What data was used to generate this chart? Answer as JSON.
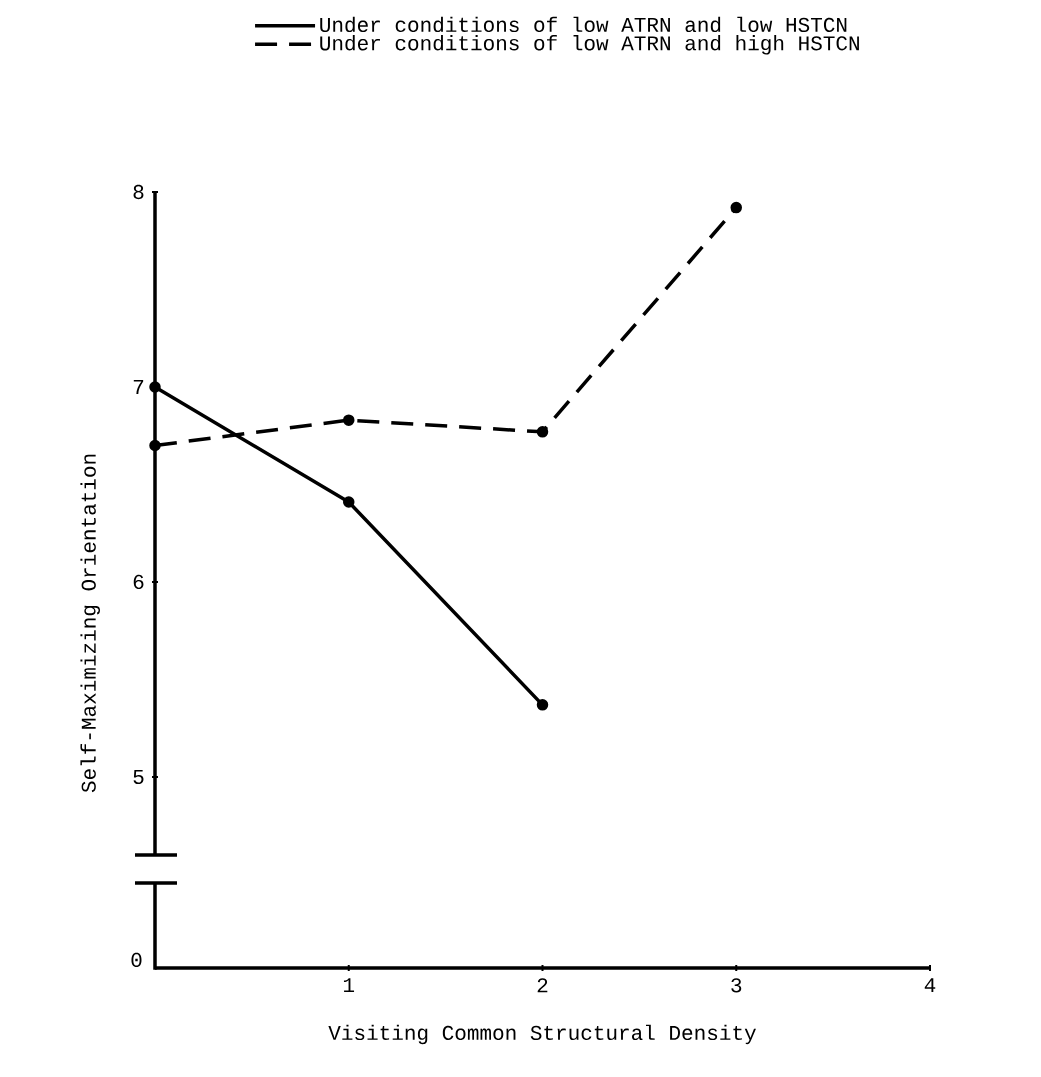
{
  "chart_data": {
    "type": "line",
    "xlabel": "Visiting Common Structural Density",
    "ylabel": "Self-Maximizing Orientation",
    "x": [
      0,
      1,
      2,
      3
    ],
    "xlim": [
      0,
      4
    ],
    "xticks": [
      1,
      2,
      3,
      4
    ],
    "ylim": [
      4.6,
      8
    ],
    "yticks": [
      5,
      6,
      7,
      8
    ],
    "annotations": [
      "0"
    ],
    "legend": "top",
    "marker": "circle",
    "series": [
      {
        "name": "Under conditions of low ATRN and low HSTCN",
        "color": "#000000",
        "line_style": "solid",
        "values": [
          7.0,
          6.41,
          5.37,
          null
        ]
      },
      {
        "name": "Under conditions of low ATRN and high HSTCN",
        "color": "#000000",
        "line_style": "dashed",
        "values": [
          6.7,
          6.83,
          6.77,
          7.92
        ]
      }
    ]
  }
}
